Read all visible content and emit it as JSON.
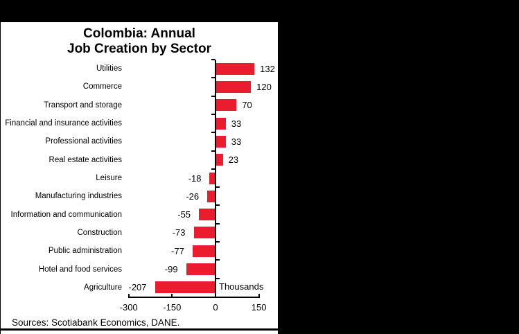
{
  "title": {
    "line1": "Colombia: Annual",
    "line2": "Job Creation by Sector"
  },
  "chart_data": {
    "type": "bar",
    "orientation": "horizontal",
    "title": "Colombia: Annual Job Creation by Sector",
    "categories": [
      "Utilities",
      "Commerce",
      "Transport and storage",
      "Financial and insurance activities",
      "Professional activities",
      "Real estate activities",
      "Leisure",
      "Manufacturing industries",
      "Information and communication",
      "Construction",
      "Public administration",
      "Hotel and food services",
      "Agriculture"
    ],
    "values": [
      132,
      120,
      70,
      33,
      33,
      23,
      -18,
      -26,
      -55,
      -73,
      -77,
      -99,
      -207
    ],
    "value_labels": [
      "132",
      "120",
      "70",
      "33",
      "33",
      "23",
      "-18",
      "-26",
      "-55",
      "-73",
      "-77",
      "-99",
      "-207"
    ],
    "xlabel": "Thousands",
    "xlim": [
      -300,
      150
    ],
    "xticks": [
      -300,
      -150,
      0,
      150
    ],
    "xtick_labels": [
      "-300",
      "-150",
      "0",
      "150"
    ],
    "grid": false,
    "legend": false,
    "bar_color": "#EA1C2D",
    "axis_color": "#000000",
    "text_color": "#000000",
    "source": "Sources: Scotiabank Economics, DANE."
  },
  "colors": {
    "background": "#000000",
    "panel": "#FFFFFF",
    "bar": "#EA1C2D"
  }
}
